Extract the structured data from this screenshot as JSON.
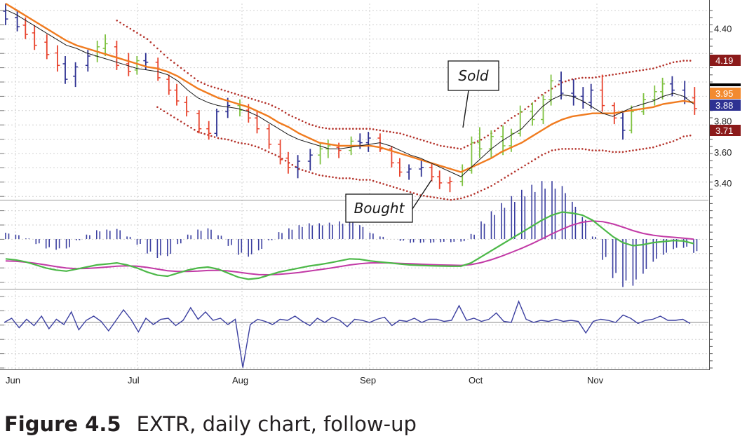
{
  "caption": {
    "figure": "Figure 4.5",
    "text": "EXTR, daily chart, follow-up"
  },
  "chart_data": {
    "type": "bar",
    "subtype": "ohlc-with-indicators",
    "months": [
      "Jun",
      "Jul",
      "Aug",
      "Sep",
      "Oct",
      "Nov"
    ],
    "price_panel": {
      "y_ticks": [
        4.4,
        3.8,
        3.6,
        3.4
      ],
      "ylim": [
        3.3,
        4.56
      ],
      "price_tags": [
        {
          "label": "4.19",
          "color": "#8b1a1a"
        },
        {
          "label": "3.95",
          "color": "#f28a30"
        },
        {
          "label": "3.88",
          "color": "#2e3192"
        },
        {
          "label": "3.71",
          "color": "#8b1a1a"
        }
      ],
      "ema_fast": [
        4.52,
        4.49,
        4.45,
        4.41,
        4.37,
        4.33,
        4.29,
        4.27,
        4.24,
        4.22,
        4.2,
        4.18,
        4.16,
        4.14,
        4.13,
        4.12,
        4.1,
        4.06,
        4.0,
        3.95,
        3.92,
        3.9,
        3.89,
        3.88,
        3.86,
        3.83,
        3.79,
        3.75,
        3.71,
        3.68,
        3.66,
        3.64,
        3.62,
        3.62,
        3.63,
        3.64,
        3.65,
        3.66,
        3.64,
        3.61,
        3.58,
        3.56,
        3.53,
        3.5,
        3.47,
        3.44,
        3.5,
        3.56,
        3.62,
        3.67,
        3.71,
        3.75,
        3.82,
        3.89,
        3.94,
        3.97,
        3.96,
        3.93,
        3.89,
        3.85,
        3.83,
        3.86,
        3.89,
        3.91,
        3.93,
        3.96,
        3.98,
        3.96,
        3.91
      ],
      "ema_slow": [
        4.56,
        4.52,
        4.48,
        4.44,
        4.4,
        4.36,
        4.32,
        4.29,
        4.27,
        4.25,
        4.23,
        4.21,
        4.19,
        4.17,
        4.15,
        4.14,
        4.12,
        4.09,
        4.05,
        4.01,
        3.98,
        3.95,
        3.93,
        3.91,
        3.89,
        3.86,
        3.83,
        3.79,
        3.76,
        3.72,
        3.69,
        3.66,
        3.65,
        3.64,
        3.64,
        3.64,
        3.64,
        3.63,
        3.61,
        3.59,
        3.57,
        3.55,
        3.53,
        3.51,
        3.49,
        3.47,
        3.5,
        3.53,
        3.56,
        3.6,
        3.63,
        3.66,
        3.7,
        3.74,
        3.78,
        3.81,
        3.83,
        3.84,
        3.85,
        3.85,
        3.85,
        3.86,
        3.87,
        3.88,
        3.89,
        3.91,
        3.92,
        3.93,
        3.92
      ],
      "envelope_upper": [
        null,
        null,
        null,
        null,
        null,
        null,
        null,
        null,
        null,
        null,
        null,
        4.45,
        4.41,
        4.37,
        4.33,
        4.27,
        4.21,
        4.16,
        4.11,
        4.06,
        4.03,
        4.01,
        3.99,
        3.97,
        3.95,
        3.93,
        3.91,
        3.88,
        3.84,
        3.81,
        3.78,
        3.76,
        3.75,
        3.75,
        3.75,
        3.75,
        3.75,
        3.74,
        3.73,
        3.72,
        3.7,
        3.68,
        3.66,
        3.64,
        3.63,
        3.62,
        3.65,
        3.68,
        3.72,
        3.77,
        3.82,
        3.86,
        3.91,
        3.97,
        4.01,
        4.05,
        4.07,
        4.08,
        4.08,
        4.09,
        4.1,
        4.11,
        4.12,
        4.13,
        4.14,
        4.16,
        4.18,
        4.19,
        4.19
      ],
      "envelope_lower": [
        null,
        null,
        null,
        null,
        null,
        null,
        null,
        null,
        null,
        null,
        null,
        null,
        null,
        null,
        null,
        3.89,
        3.85,
        3.81,
        3.77,
        3.73,
        3.71,
        3.69,
        3.68,
        3.66,
        3.65,
        3.63,
        3.6,
        3.57,
        3.53,
        3.49,
        3.47,
        3.45,
        3.44,
        3.43,
        3.43,
        3.42,
        3.42,
        3.4,
        3.38,
        3.36,
        3.34,
        3.32,
        3.31,
        3.3,
        3.29,
        3.3,
        3.32,
        3.35,
        3.38,
        3.42,
        3.46,
        3.5,
        3.54,
        3.58,
        3.61,
        3.62,
        3.62,
        3.62,
        3.61,
        3.61,
        3.6,
        3.6,
        3.61,
        3.62,
        3.63,
        3.65,
        3.67,
        3.7,
        3.71
      ],
      "ohlc": [
        [
          4.51,
          4.56,
          4.42,
          4.46,
          "#2e3192"
        ],
        [
          4.47,
          4.52,
          4.38,
          4.41,
          "#2e3192"
        ],
        [
          4.42,
          4.47,
          4.33,
          4.36,
          "#e8432d"
        ],
        [
          4.37,
          4.42,
          4.26,
          4.29,
          "#e8432d"
        ],
        [
          4.31,
          4.36,
          4.2,
          4.23,
          "#e8432d"
        ],
        [
          4.24,
          4.29,
          4.12,
          4.16,
          "#e8432d"
        ],
        [
          4.17,
          4.22,
          4.04,
          4.07,
          "#2e3192"
        ],
        [
          4.09,
          4.18,
          4.02,
          4.15,
          "#2e3192"
        ],
        [
          4.16,
          4.26,
          4.12,
          4.22,
          "#2e3192"
        ],
        [
          4.22,
          4.32,
          4.18,
          4.28,
          "#7fc241"
        ],
        [
          4.27,
          4.36,
          4.22,
          4.3,
          "#7fc241"
        ],
        [
          4.28,
          4.32,
          4.13,
          4.16,
          "#e8432d"
        ],
        [
          4.17,
          4.24,
          4.09,
          4.12,
          "#e8432d"
        ],
        [
          4.13,
          4.22,
          4.1,
          4.19,
          "#7fc241"
        ],
        [
          4.19,
          4.24,
          4.13,
          4.18,
          "#2e3192"
        ],
        [
          4.18,
          4.21,
          4.06,
          4.08,
          "#e8432d"
        ],
        [
          4.07,
          4.1,
          3.97,
          4.0,
          "#e8432d"
        ],
        [
          4.0,
          4.04,
          3.9,
          3.93,
          "#e8432d"
        ],
        [
          3.92,
          3.96,
          3.83,
          3.86,
          "#e8432d"
        ],
        [
          3.85,
          3.87,
          3.72,
          3.75,
          "#e8432d"
        ],
        [
          3.75,
          3.8,
          3.68,
          3.72,
          "#e8432d"
        ],
        [
          3.72,
          3.88,
          3.7,
          3.86,
          "#2e3192"
        ],
        [
          3.86,
          3.95,
          3.82,
          3.9,
          "#2e3192"
        ],
        [
          3.9,
          3.94,
          3.83,
          3.87,
          "#7fc241"
        ],
        [
          3.87,
          3.91,
          3.79,
          3.82,
          "#e8432d"
        ],
        [
          3.82,
          3.86,
          3.72,
          3.75,
          "#e8432d"
        ],
        [
          3.75,
          3.78,
          3.62,
          3.65,
          "#e8432d"
        ],
        [
          3.65,
          3.68,
          3.52,
          3.55,
          "#e8432d"
        ],
        [
          3.56,
          3.6,
          3.46,
          3.5,
          "#e8432d"
        ],
        [
          3.5,
          3.58,
          3.43,
          3.54,
          "#2e3192"
        ],
        [
          3.54,
          3.62,
          3.48,
          3.58,
          "#2e3192"
        ],
        [
          3.58,
          3.66,
          3.52,
          3.62,
          "#7fc241"
        ],
        [
          3.62,
          3.68,
          3.56,
          3.64,
          "#7fc241"
        ],
        [
          3.63,
          3.66,
          3.56,
          3.61,
          "#e8432d"
        ],
        [
          3.61,
          3.7,
          3.58,
          3.67,
          "#7fc241"
        ],
        [
          3.67,
          3.72,
          3.62,
          3.66,
          "#2e3192"
        ],
        [
          3.66,
          3.73,
          3.6,
          3.69,
          "#2e3192"
        ],
        [
          3.69,
          3.72,
          3.6,
          3.62,
          "#e8432d"
        ],
        [
          3.62,
          3.64,
          3.5,
          3.53,
          "#e8432d"
        ],
        [
          3.53,
          3.56,
          3.44,
          3.47,
          "#e8432d"
        ],
        [
          3.47,
          3.52,
          3.42,
          3.49,
          "#2e3192"
        ],
        [
          3.49,
          3.55,
          3.44,
          3.5,
          "#2e3192"
        ],
        [
          3.5,
          3.53,
          3.41,
          3.44,
          "#e8432d"
        ],
        [
          3.44,
          3.48,
          3.36,
          3.4,
          "#e8432d"
        ],
        [
          3.4,
          3.44,
          3.34,
          3.41,
          "#e8432d"
        ],
        [
          3.41,
          3.52,
          3.38,
          3.48,
          "#7fc241"
        ],
        [
          3.48,
          3.7,
          3.46,
          3.66,
          "#7fc241"
        ],
        [
          3.66,
          3.76,
          3.56,
          3.62,
          "#7fc241"
        ],
        [
          3.62,
          3.74,
          3.56,
          3.7,
          "#7fc241"
        ],
        [
          3.7,
          3.77,
          3.58,
          3.64,
          "#7fc241"
        ],
        [
          3.64,
          3.75,
          3.6,
          3.72,
          "#7fc241"
        ],
        [
          3.72,
          3.9,
          3.7,
          3.86,
          "#7fc241"
        ],
        [
          3.86,
          3.92,
          3.77,
          3.81,
          "#7fc241"
        ],
        [
          3.81,
          3.97,
          3.78,
          3.94,
          "#7fc241"
        ],
        [
          3.94,
          4.1,
          3.9,
          4.06,
          "#7fc241"
        ],
        [
          4.06,
          4.12,
          3.94,
          3.98,
          "#2e3192"
        ],
        [
          3.98,
          4.07,
          3.9,
          3.96,
          "#2e3192"
        ],
        [
          3.96,
          4.02,
          3.88,
          3.92,
          "#2e3192"
        ],
        [
          3.92,
          4.04,
          3.88,
          4.0,
          "#2e3192"
        ],
        [
          4.0,
          4.1,
          3.86,
          3.9,
          "#e8432d"
        ],
        [
          3.9,
          3.92,
          3.78,
          3.82,
          "#e8432d"
        ],
        [
          3.82,
          3.86,
          3.68,
          3.74,
          "#2e3192"
        ],
        [
          3.74,
          3.9,
          3.72,
          3.86,
          "#7fc241"
        ],
        [
          3.86,
          3.98,
          3.84,
          3.94,
          "#7fc241"
        ],
        [
          3.94,
          4.03,
          3.9,
          3.99,
          "#7fc241"
        ],
        [
          3.99,
          4.08,
          3.94,
          4.04,
          "#7fc241"
        ],
        [
          4.04,
          4.09,
          3.96,
          4.0,
          "#2e3192"
        ],
        [
          4.0,
          4.06,
          3.91,
          3.95,
          "#2e3192"
        ],
        [
          3.95,
          4.02,
          3.84,
          3.88,
          "#e8432d"
        ]
      ]
    },
    "macd_panel": {
      "macd_line": [
        0.02,
        0.015,
        0.005,
        -0.01,
        -0.025,
        -0.035,
        -0.04,
        -0.03,
        -0.02,
        -0.01,
        -0.005,
        0.0,
        -0.01,
        -0.025,
        -0.045,
        -0.06,
        -0.065,
        -0.05,
        -0.035,
        -0.025,
        -0.02,
        -0.03,
        -0.05,
        -0.07,
        -0.08,
        -0.075,
        -0.06,
        -0.045,
        -0.035,
        -0.025,
        -0.015,
        -0.008,
        0.0,
        0.01,
        0.02,
        0.018,
        0.01,
        0.005,
        0.0,
        -0.005,
        -0.01,
        -0.012,
        -0.014,
        -0.015,
        -0.016,
        -0.016,
        0.0,
        0.03,
        0.06,
        0.09,
        0.12,
        0.15,
        0.18,
        0.21,
        0.235,
        0.25,
        0.245,
        0.235,
        0.21,
        0.17,
        0.13,
        0.1,
        0.085,
        0.09,
        0.1,
        0.105,
        0.11,
        0.108,
        0.095
      ],
      "signal_line": [
        0.01,
        0.008,
        0.004,
        -0.002,
        -0.01,
        -0.018,
        -0.025,
        -0.028,
        -0.027,
        -0.024,
        -0.02,
        -0.016,
        -0.014,
        -0.016,
        -0.022,
        -0.03,
        -0.038,
        -0.042,
        -0.042,
        -0.04,
        -0.037,
        -0.036,
        -0.039,
        -0.045,
        -0.052,
        -0.057,
        -0.058,
        -0.056,
        -0.052,
        -0.047,
        -0.04,
        -0.033,
        -0.026,
        -0.018,
        -0.01,
        -0.004,
        0.0,
        0.001,
        0.0,
        -0.002,
        -0.004,
        -0.006,
        -0.008,
        -0.01,
        -0.011,
        -0.012,
        -0.008,
        0.002,
        0.016,
        0.033,
        0.052,
        0.072,
        0.094,
        0.118,
        0.143,
        0.166,
        0.186,
        0.2,
        0.206,
        0.203,
        0.192,
        0.176,
        0.159,
        0.145,
        0.136,
        0.13,
        0.126,
        0.122,
        0.117
      ]
    },
    "oscillator_panel": {
      "values": [
        0.0,
        0.4,
        -0.5,
        0.3,
        -0.3,
        0.6,
        -0.6,
        0.3,
        -0.2,
        1.0,
        -0.7,
        0.2,
        0.6,
        0.1,
        -0.8,
        0.2,
        1.2,
        0.3,
        -0.9,
        0.4,
        -0.2,
        0.3,
        0.4,
        -0.3,
        0.2,
        1.4,
        0.3,
        1.0,
        0.2,
        0.4,
        -0.2,
        0.3,
        -4.3,
        -0.2,
        0.3,
        0.1,
        -0.2,
        0.3,
        0.2,
        0.6,
        0.1,
        -0.3,
        0.4,
        0.0,
        0.5,
        0.2,
        -0.4,
        0.3,
        0.2,
        0.0,
        0.3,
        0.5,
        -0.3,
        0.2,
        0.1,
        0.4,
        0.0,
        0.3,
        0.3,
        0.1,
        0.2,
        1.6,
        0.2,
        0.4,
        0.1,
        0.3,
        0.9,
        0.1,
        0.0,
        2.0,
        0.3,
        0.0,
        0.2,
        0.1,
        0.3,
        0.1,
        0.2,
        0.1,
        -1.0,
        0.1,
        0.3,
        0.2,
        0.0,
        0.7,
        0.4,
        -0.1,
        0.2,
        0.3,
        0.6,
        0.2,
        0.2,
        0.3,
        -0.1
      ]
    }
  },
  "annotations": {
    "sold": "Sold",
    "bought": "Bought"
  }
}
